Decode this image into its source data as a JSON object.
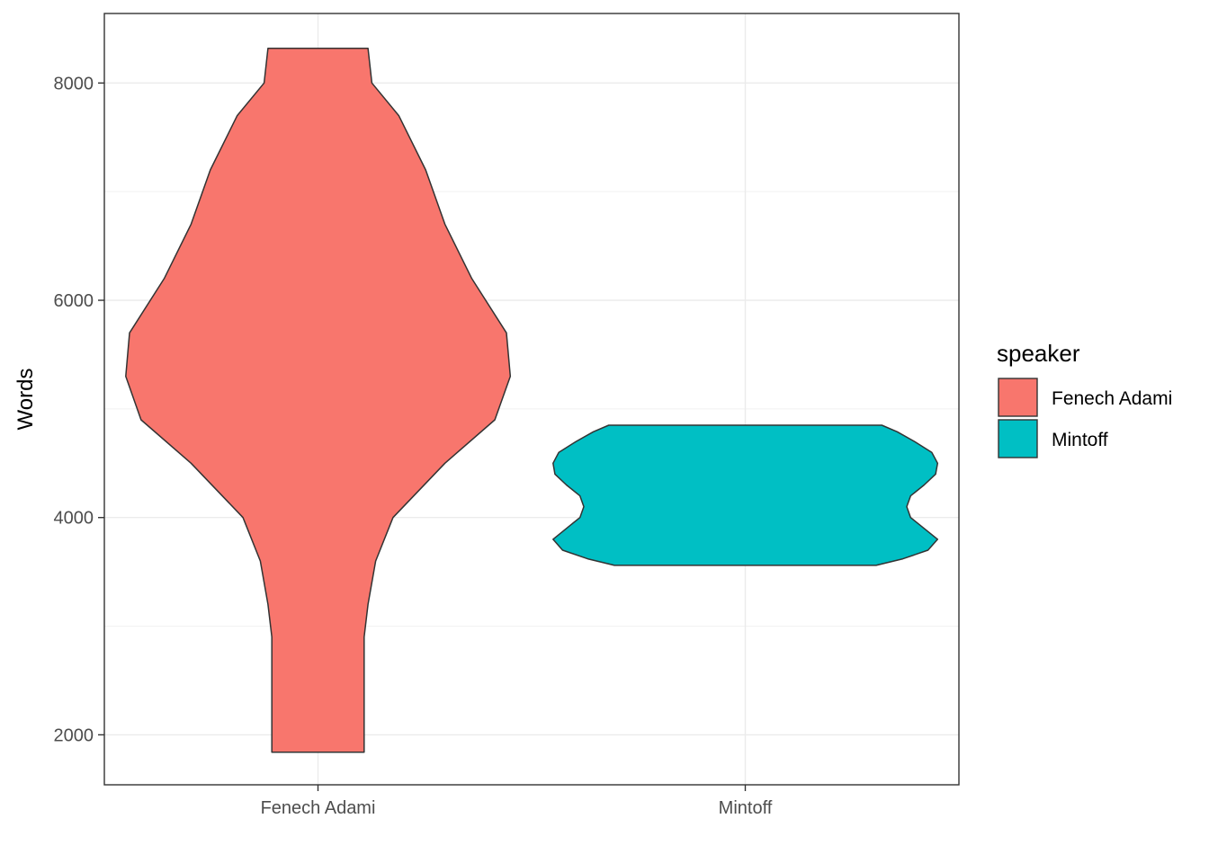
{
  "chart_data": {
    "type": "violin",
    "xlabel": "",
    "ylabel": "Words",
    "ylim": [
      1540,
      8640
    ],
    "yticks": [
      2000,
      4000,
      6000,
      8000
    ],
    "y_tick_labels": [
      "2000",
      "4000",
      "6000",
      "8000"
    ],
    "grid": true,
    "categories": [
      "Fenech Adami",
      "Mintoff"
    ],
    "legend": {
      "title": "speaker",
      "position": "right",
      "entries": [
        "Fenech Adami",
        "Mintoff"
      ]
    },
    "series": [
      {
        "category": "Fenech Adami",
        "color": "#F8766D",
        "min": 1840,
        "max": 8320,
        "density_profile": [
          [
            1840,
            0.24
          ],
          [
            2400,
            0.24
          ],
          [
            2900,
            0.24
          ],
          [
            3200,
            0.26
          ],
          [
            3600,
            0.3
          ],
          [
            4000,
            0.39
          ],
          [
            4500,
            0.66
          ],
          [
            4900,
            0.92
          ],
          [
            5300,
            1.0
          ],
          [
            5700,
            0.98
          ],
          [
            6200,
            0.8
          ],
          [
            6700,
            0.66
          ],
          [
            7200,
            0.56
          ],
          [
            7700,
            0.42
          ],
          [
            8000,
            0.28
          ],
          [
            8320,
            0.26
          ]
        ]
      },
      {
        "category": "Mintoff",
        "color": "#00BFC4",
        "min": 3560,
        "max": 4850,
        "density_profile": [
          [
            3560,
            0.68
          ],
          [
            3620,
            0.82
          ],
          [
            3700,
            0.95
          ],
          [
            3800,
            1.0
          ],
          [
            3900,
            0.93
          ],
          [
            4000,
            0.86
          ],
          [
            4100,
            0.84
          ],
          [
            4200,
            0.86
          ],
          [
            4300,
            0.93
          ],
          [
            4400,
            0.99
          ],
          [
            4500,
            1.0
          ],
          [
            4600,
            0.97
          ],
          [
            4700,
            0.88
          ],
          [
            4790,
            0.79
          ],
          [
            4850,
            0.71
          ]
        ]
      }
    ]
  }
}
